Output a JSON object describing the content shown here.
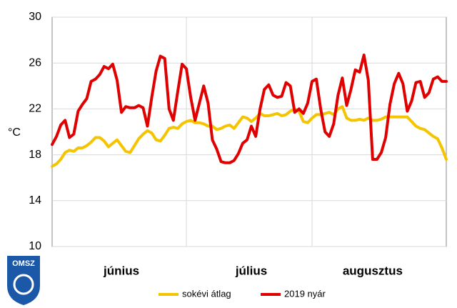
{
  "chart_data": {
    "type": "line",
    "ylabel": "°C",
    "categories": [
      null,
      null,
      null,
      null,
      null,
      null,
      null,
      null,
      null,
      null,
      null,
      null,
      null,
      null,
      null,
      null,
      "június",
      null,
      null,
      null,
      null,
      null,
      null,
      null,
      null,
      null,
      null,
      null,
      null,
      null,
      null,
      null,
      null,
      null,
      null,
      null,
      null,
      null,
      null,
      null,
      null,
      null,
      null,
      null,
      null,
      null,
      "július",
      null,
      null,
      null,
      null,
      null,
      null,
      null,
      null,
      null,
      null,
      null,
      null,
      null,
      null,
      null,
      null,
      null,
      null,
      null,
      null,
      null,
      null,
      null,
      null,
      null,
      null,
      null,
      "augusztus",
      null,
      null,
      null,
      null,
      null,
      null,
      null,
      null,
      null,
      null,
      null,
      null,
      null,
      null,
      null,
      null,
      null
    ],
    "series": [
      {
        "name": "sokévi átlag",
        "color": "#f5c400",
        "values": [
          17.0,
          17.2,
          17.6,
          18.2,
          18.4,
          18.3,
          18.6,
          18.6,
          18.8,
          19.1,
          19.5,
          19.5,
          19.2,
          18.7,
          19.0,
          19.3,
          18.8,
          18.3,
          18.2,
          18.8,
          19.4,
          19.8,
          20.1,
          19.9,
          19.3,
          19.2,
          19.7,
          20.3,
          20.4,
          20.3,
          20.7,
          20.9,
          21.0,
          20.8,
          20.8,
          20.7,
          20.5,
          20.5,
          20.2,
          20.3,
          20.5,
          20.6,
          20.3,
          20.8,
          21.3,
          21.2,
          20.9,
          21.2,
          21.6,
          21.4,
          21.4,
          21.5,
          21.6,
          21.4,
          21.5,
          21.8,
          22.0,
          21.8,
          20.9,
          20.8,
          21.2,
          21.5,
          21.5,
          21.6,
          21.7,
          21.5,
          22.0,
          22.2,
          21.2,
          21.0,
          21.0,
          21.1,
          21.0,
          21.2,
          21.0,
          21.0,
          21.1,
          21.3,
          21.3,
          21.3,
          21.3,
          21.3,
          21.3,
          20.9,
          20.5,
          20.3,
          20.2,
          19.9,
          19.6,
          19.4,
          18.6,
          17.6
        ]
      },
      {
        "name": "2019 nyár",
        "color": "#e00000",
        "values": [
          18.9,
          19.6,
          20.6,
          21.0,
          19.5,
          19.8,
          21.8,
          22.4,
          22.9,
          24.4,
          24.6,
          25.0,
          25.7,
          25.5,
          25.9,
          24.5,
          21.7,
          22.2,
          22.1,
          22.1,
          22.3,
          22.1,
          20.5,
          23.0,
          25.3,
          26.6,
          26.4,
          22.0,
          21.0,
          23.5,
          25.9,
          25.5,
          23.0,
          21.0,
          22.5,
          24.0,
          22.5,
          19.3,
          18.5,
          17.4,
          17.3,
          17.3,
          17.5,
          18.1,
          19.0,
          19.3,
          20.5,
          19.6,
          22.0,
          23.7,
          24.1,
          23.2,
          23.0,
          23.1,
          24.3,
          24.0,
          21.7,
          22.0,
          21.6,
          22.5,
          24.4,
          24.6,
          22.0,
          20.0,
          19.6,
          20.7,
          23.2,
          24.7,
          22.3,
          23.7,
          25.4,
          25.2,
          26.7,
          24.5,
          17.6,
          17.6,
          18.2,
          19.5,
          22.4,
          24.2,
          25.1,
          24.2,
          21.8,
          22.7,
          24.3,
          24.4,
          23.0,
          23.4,
          24.6,
          24.8,
          24.4,
          24.4
        ]
      }
    ],
    "ylim": [
      10,
      30
    ],
    "yticks": [
      10,
      14,
      18,
      22,
      26,
      30
    ],
    "grid": true,
    "legend": "bottom"
  },
  "logo": "OMSZ"
}
